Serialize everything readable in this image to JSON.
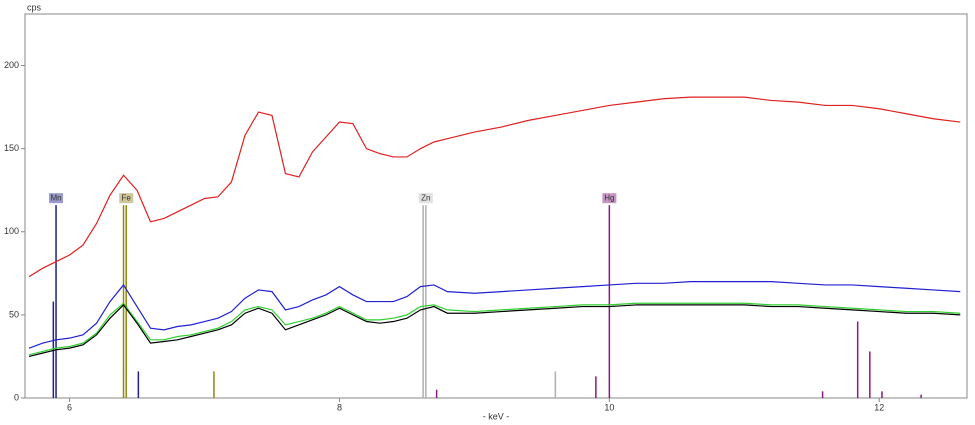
{
  "chart_data": {
    "type": "line",
    "y_label": "cps",
    "x_label": "- keV -",
    "x": [
      5.7,
      5.8,
      5.9,
      6.0,
      6.1,
      6.2,
      6.3,
      6.4,
      6.5,
      6.6,
      6.7,
      6.8,
      6.9,
      7.0,
      7.1,
      7.2,
      7.3,
      7.4,
      7.5,
      7.6,
      7.7,
      7.8,
      7.9,
      8.0,
      8.1,
      8.2,
      8.3,
      8.4,
      8.5,
      8.6,
      8.7,
      8.8,
      9.0,
      9.2,
      9.4,
      9.6,
      9.8,
      10.0,
      10.2,
      10.4,
      10.6,
      10.8,
      11.0,
      11.2,
      11.4,
      11.6,
      11.8,
      12.0,
      12.2,
      12.4,
      12.6
    ],
    "series": [
      {
        "color": "#e02020",
        "values": [
          73,
          78,
          82,
          86,
          92,
          105,
          122,
          134,
          125,
          106,
          108,
          112,
          116,
          120,
          121,
          130,
          158,
          172,
          170,
          135,
          133,
          148,
          157,
          166,
          165,
          150,
          147,
          145,
          145,
          150,
          154,
          156,
          160,
          163,
          167,
          170,
          173,
          176,
          178,
          180,
          181,
          181,
          181,
          179,
          178,
          176,
          176,
          174,
          171,
          168,
          166
        ]
      },
      {
        "color": "#2020d0",
        "values": [
          30,
          33,
          35,
          36,
          38,
          45,
          58,
          68,
          55,
          42,
          41,
          43,
          44,
          46,
          48,
          52,
          60,
          65,
          64,
          53,
          55,
          59,
          62,
          67,
          62,
          58,
          58,
          58,
          61,
          67,
          68,
          64,
          63,
          64,
          65,
          66,
          67,
          68,
          69,
          69,
          70,
          70,
          70,
          70,
          69,
          68,
          68,
          67,
          66,
          65,
          64
        ]
      },
      {
        "color": "#30d030",
        "values": [
          26,
          28,
          30,
          31,
          33,
          39,
          50,
          57,
          46,
          35,
          35,
          37,
          38,
          40,
          42,
          46,
          53,
          55,
          53,
          44,
          46,
          48,
          51,
          55,
          51,
          47,
          47,
          48,
          50,
          55,
          56,
          53,
          52,
          53,
          54,
          55,
          56,
          56,
          57,
          57,
          57,
          57,
          57,
          56,
          56,
          55,
          54,
          53,
          52,
          52,
          51
        ]
      },
      {
        "color": "#000000",
        "values": [
          25,
          27,
          29,
          30,
          32,
          38,
          48,
          56,
          45,
          33,
          34,
          35,
          37,
          39,
          41,
          44,
          51,
          54,
          51,
          41,
          44,
          47,
          50,
          54,
          50,
          46,
          45,
          46,
          48,
          53,
          55,
          51,
          51,
          52,
          53,
          54,
          55,
          55,
          56,
          56,
          56,
          56,
          56,
          55,
          55,
          54,
          53,
          52,
          51,
          51,
          50
        ]
      }
    ],
    "elements": [
      {
        "label": "Mn",
        "color": "#20208a",
        "box": "#9a9acc",
        "lines": [
          {
            "x": 5.9,
            "height": 116
          },
          {
            "x": 5.88,
            "height": 58
          },
          {
            "x": 6.51,
            "height": 16
          }
        ]
      },
      {
        "label": "Fe",
        "color": "#8a8a10",
        "box": "#cfc79a",
        "lines": [
          {
            "x": 6.42,
            "height": 116
          },
          {
            "x": 6.4,
            "height": 116
          },
          {
            "x": 7.07,
            "height": 16
          }
        ]
      },
      {
        "label": "Zn",
        "color": "#b0b0b0",
        "box": "#e2e2e2",
        "lines": [
          {
            "x": 8.64,
            "height": 116
          },
          {
            "x": 8.62,
            "height": 116
          },
          {
            "x": 9.6,
            "height": 16
          }
        ]
      },
      {
        "label": "Hg",
        "color": "#8a1a7a",
        "box": "#c795c4",
        "lines": [
          {
            "x": 10.0,
            "height": 116
          },
          {
            "x": 8.72,
            "height": 5
          },
          {
            "x": 9.9,
            "height": 13
          },
          {
            "x": 11.58,
            "height": 4
          },
          {
            "x": 11.84,
            "height": 46
          },
          {
            "x": 11.93,
            "height": 28
          },
          {
            "x": 12.02,
            "height": 4
          },
          {
            "x": 12.31,
            "height": 2
          }
        ]
      }
    ],
    "xlim": [
      5.67,
      12.65
    ],
    "ylim": [
      0,
      231
    ],
    "xticks": [
      6,
      8,
      10,
      12
    ],
    "yticks": [
      0,
      50,
      100,
      150,
      200
    ],
    "grid": false
  }
}
